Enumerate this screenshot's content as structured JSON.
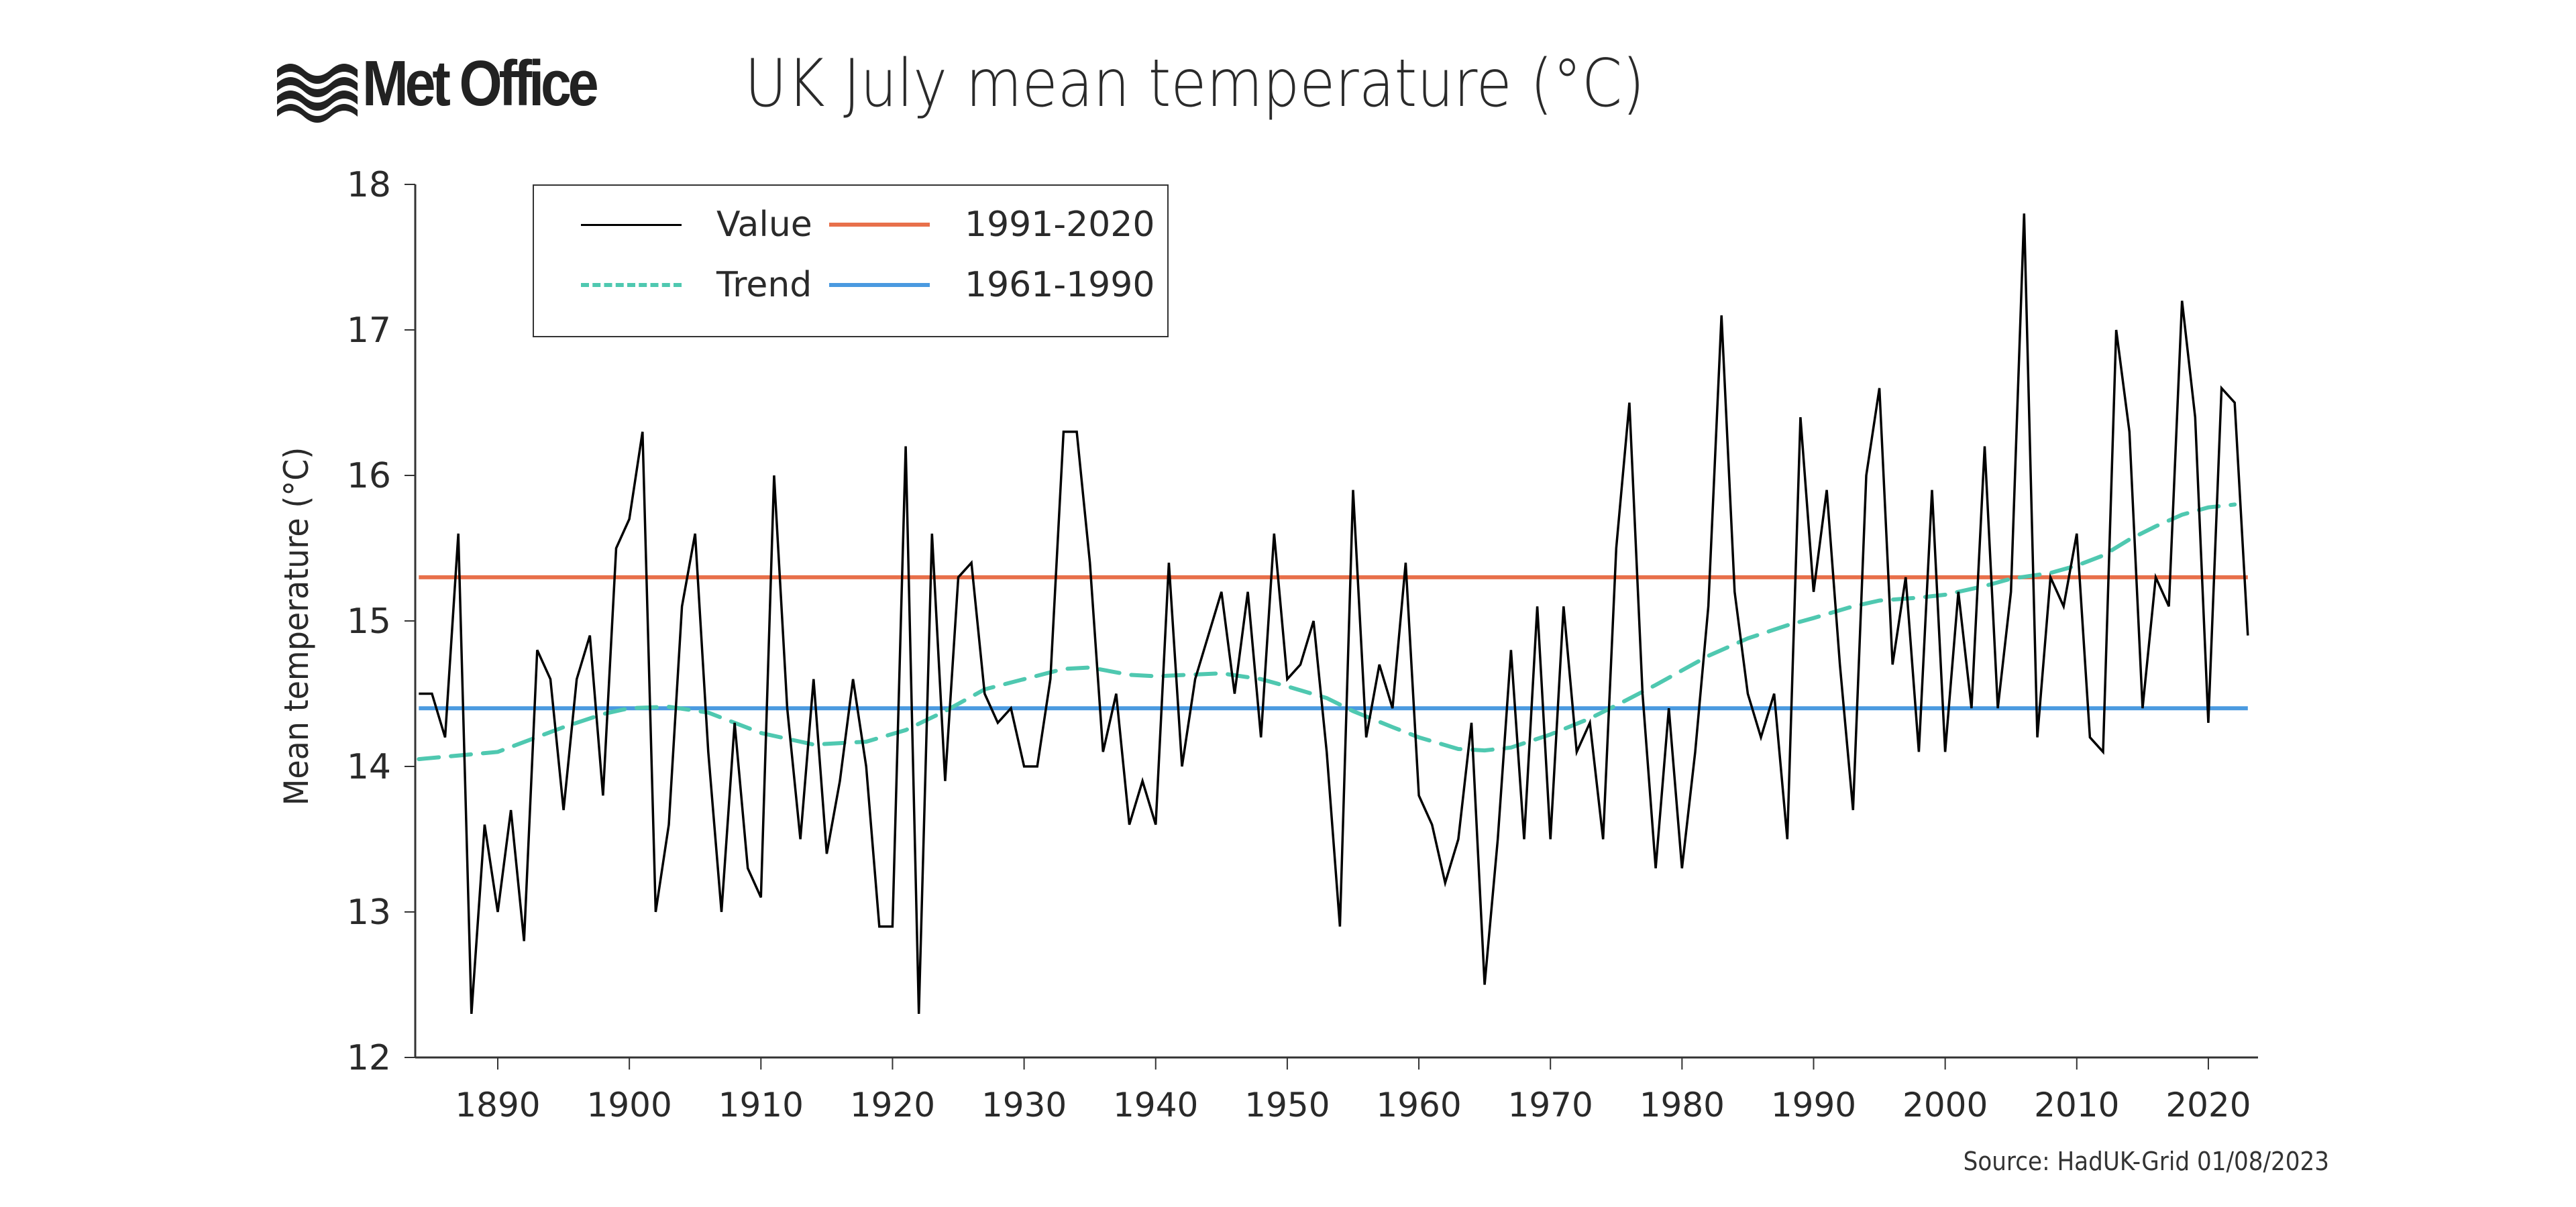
{
  "header": {
    "logo_text": "Met Office",
    "title": "UK July mean temperature (°C)"
  },
  "footer": {
    "source": "Source: HadUK-Grid 01/08/2023"
  },
  "legend": {
    "items": [
      {
        "label": "Value",
        "color": "#000000",
        "style": "solid"
      },
      {
        "label": "1991-2020",
        "color": "#e8704b",
        "style": "solid"
      },
      {
        "label": "Trend",
        "color": "#4fc8b0",
        "style": "dashed"
      },
      {
        "label": "1961-1990",
        "color": "#4a9ae0",
        "style": "solid"
      }
    ]
  },
  "chart_data": {
    "type": "line",
    "title": "UK July mean temperature (°C)",
    "xlabel": "",
    "ylabel": "Mean temperature (°C)",
    "xlim": [
      1884,
      2023
    ],
    "ylim": [
      12,
      18
    ],
    "xticks": [
      "1890",
      "1900",
      "1910",
      "1920",
      "1930",
      "1940",
      "1950",
      "1960",
      "1970",
      "1980",
      "1990",
      "2000",
      "2010",
      "2020"
    ],
    "yticks": [
      "12",
      "13",
      "14",
      "15",
      "16",
      "17",
      "18"
    ],
    "grid": false,
    "legend_position": "top-left",
    "series": [
      {
        "name": "Value",
        "color": "#000000",
        "x_start": 1884,
        "values": [
          14.5,
          14.5,
          14.2,
          15.6,
          12.3,
          13.6,
          13.0,
          13.7,
          12.8,
          14.8,
          14.6,
          13.7,
          14.6,
          14.9,
          13.8,
          15.5,
          15.7,
          16.3,
          13.0,
          13.6,
          15.1,
          15.6,
          14.1,
          13.0,
          14.3,
          13.3,
          13.1,
          16.0,
          14.4,
          13.5,
          14.6,
          13.4,
          13.9,
          14.6,
          14.0,
          12.9,
          12.9,
          16.2,
          12.3,
          15.6,
          13.9,
          15.3,
          15.4,
          14.5,
          14.3,
          14.4,
          14.0,
          14.0,
          14.6,
          16.3,
          16.3,
          15.4,
          14.1,
          14.5,
          13.6,
          13.9,
          13.6,
          15.4,
          14.0,
          14.6,
          14.9,
          15.2,
          14.5,
          15.2,
          14.2,
          15.6,
          14.6,
          14.7,
          15.0,
          14.1,
          12.9,
          15.9,
          14.2,
          14.7,
          14.4,
          15.4,
          13.8,
          13.6,
          13.2,
          13.5,
          14.3,
          12.5,
          13.5,
          14.8,
          13.5,
          15.1,
          13.5,
          15.1,
          14.1,
          14.3,
          13.5,
          15.5,
          16.5,
          14.5,
          13.3,
          14.4,
          13.3,
          14.1,
          15.1,
          17.1,
          15.2,
          14.5,
          14.2,
          14.5,
          13.5,
          16.4,
          15.2,
          15.9,
          14.7,
          13.7,
          16.0,
          16.6,
          14.7,
          15.3,
          14.1,
          15.9,
          14.1,
          15.2,
          14.4,
          16.2,
          14.4,
          15.2,
          17.8,
          14.2,
          15.3,
          15.1,
          15.6,
          14.2,
          14.1,
          17.0,
          16.3,
          14.4,
          15.3,
          15.1,
          17.2,
          16.4,
          14.3,
          16.6,
          16.5,
          14.9
        ]
      },
      {
        "name": "Trend",
        "color": "#4fc8b0",
        "x": [
          1884,
          1890,
          1895,
          1898,
          1900,
          1903,
          1906,
          1910,
          1914,
          1918,
          1921,
          1924,
          1927,
          1930,
          1933,
          1935,
          1938,
          1940,
          1945,
          1948,
          1950,
          1953,
          1955,
          1958,
          1960,
          1963,
          1965,
          1967,
          1970,
          1973,
          1975,
          1978,
          1980,
          1982,
          1985,
          1988,
          1990,
          1993,
          1995,
          1998,
          2000,
          2003,
          2005,
          2008,
          2010,
          2012,
          2014,
          2016,
          2018,
          2020,
          2022
        ],
        "values": [
          14.05,
          14.1,
          14.27,
          14.36,
          14.4,
          14.41,
          14.37,
          14.23,
          14.15,
          14.17,
          14.25,
          14.38,
          14.53,
          14.6,
          14.67,
          14.68,
          14.63,
          14.62,
          14.64,
          14.6,
          14.55,
          14.47,
          14.38,
          14.27,
          14.2,
          14.12,
          14.11,
          14.13,
          14.22,
          14.33,
          14.42,
          14.56,
          14.66,
          14.76,
          14.88,
          14.97,
          15.02,
          15.1,
          15.14,
          15.16,
          15.18,
          15.24,
          15.29,
          15.33,
          15.38,
          15.45,
          15.56,
          15.65,
          15.73,
          15.78,
          15.8
        ]
      },
      {
        "name": "1991-2020",
        "color": "#e8704b",
        "constant": 15.3
      },
      {
        "name": "1961-1990",
        "color": "#4a9ae0",
        "constant": 14.4
      }
    ]
  }
}
